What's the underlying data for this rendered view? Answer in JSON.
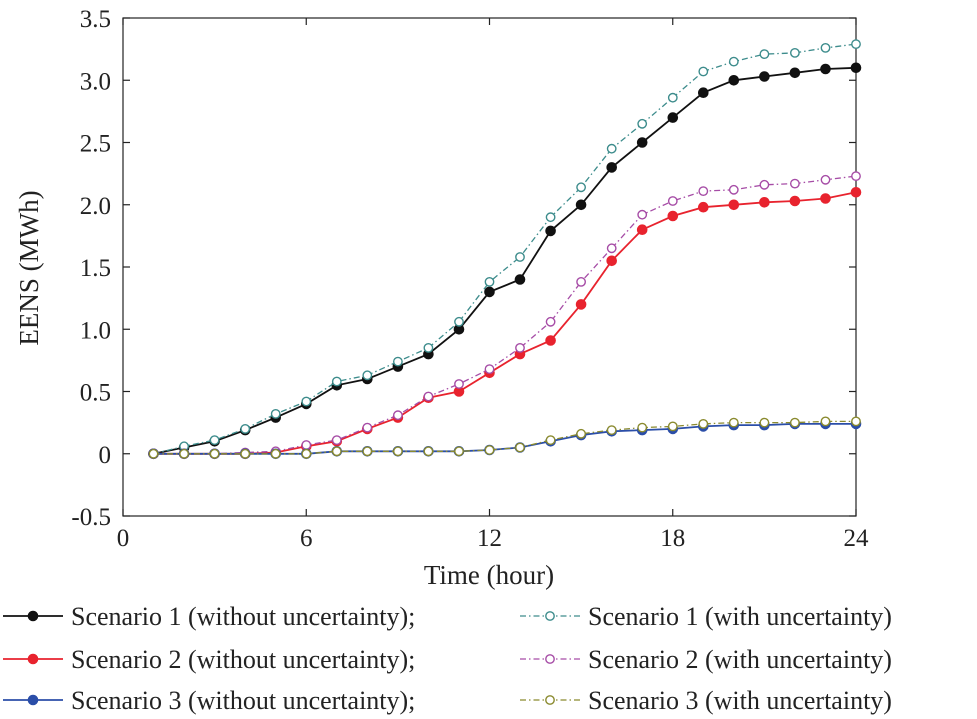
{
  "chart_data": {
    "type": "line",
    "title": "",
    "xlabel": "Time (hour)",
    "ylabel": "EENS (MWh)",
    "xlim": [
      0,
      24
    ],
    "ylim": [
      -0.5,
      3.5
    ],
    "xticks": [
      0,
      6,
      12,
      18,
      24
    ],
    "xtick_labels": [
      "0",
      "6",
      "12",
      "18",
      "24"
    ],
    "yticks": [
      -0.5,
      0,
      0.5,
      1.0,
      1.5,
      2.0,
      2.5,
      3.0,
      3.5
    ],
    "ytick_labels": [
      "-0.5",
      "0",
      "0.5",
      "1.0",
      "1.5",
      "2.0",
      "2.5",
      "3.0",
      "3.5"
    ],
    "grid": false,
    "legend_position": "bottom",
    "x": [
      1,
      2,
      3,
      4,
      5,
      6,
      7,
      8,
      9,
      10,
      11,
      12,
      13,
      14,
      15,
      16,
      17,
      18,
      19,
      20,
      21,
      22,
      23,
      24
    ],
    "series": [
      {
        "name": "Scenario 1 (without uncertainty);",
        "color": "#111111",
        "dash": "solid",
        "marker": "filled",
        "values": [
          0,
          0.05,
          0.1,
          0.19,
          0.29,
          0.4,
          0.55,
          0.6,
          0.7,
          0.8,
          1.0,
          1.3,
          1.4,
          1.79,
          2.0,
          2.3,
          2.5,
          2.7,
          2.9,
          3.0,
          3.03,
          3.06,
          3.09,
          3.1
        ]
      },
      {
        "name": "Scenario 1 (with uncertainty)",
        "color": "#3d8c8c",
        "dash": "dashdot",
        "marker": "open",
        "values": [
          0,
          0.06,
          0.11,
          0.2,
          0.32,
          0.42,
          0.58,
          0.63,
          0.74,
          0.85,
          1.06,
          1.38,
          1.58,
          1.9,
          2.14,
          2.45,
          2.65,
          2.86,
          3.07,
          3.15,
          3.21,
          3.22,
          3.26,
          3.29
        ]
      },
      {
        "name": "Scenario 2 (without uncertainty);",
        "color": "#e8232e",
        "dash": "solid",
        "marker": "filled",
        "values": [
          0,
          0,
          0,
          0,
          0.01,
          0.06,
          0.1,
          0.2,
          0.29,
          0.45,
          0.5,
          0.65,
          0.8,
          0.91,
          1.2,
          1.55,
          1.8,
          1.91,
          1.98,
          2.0,
          2.02,
          2.03,
          2.05,
          2.1
        ]
      },
      {
        "name": "Scenario 2 (with uncertainty)",
        "color": "#a64ca6",
        "dash": "dashdot",
        "marker": "open",
        "values": [
          0,
          0,
          0,
          0.01,
          0.02,
          0.07,
          0.11,
          0.21,
          0.31,
          0.46,
          0.56,
          0.68,
          0.85,
          1.06,
          1.38,
          1.65,
          1.92,
          2.03,
          2.11,
          2.12,
          2.16,
          2.17,
          2.2,
          2.23
        ]
      },
      {
        "name": "Scenario 3 (without uncertainty);",
        "color": "#2b4ea8",
        "dash": "solid",
        "marker": "filled",
        "values": [
          0,
          0,
          0,
          0,
          0,
          0,
          0.02,
          0.02,
          0.02,
          0.02,
          0.02,
          0.03,
          0.05,
          0.1,
          0.15,
          0.18,
          0.19,
          0.2,
          0.22,
          0.23,
          0.23,
          0.24,
          0.24,
          0.24
        ]
      },
      {
        "name": "Scenario 3 (with uncertainty)",
        "color": "#8a8a2e",
        "dash": "dashdot",
        "marker": "open",
        "values": [
          0,
          0,
          0,
          0,
          0,
          0,
          0.02,
          0.02,
          0.02,
          0.02,
          0.02,
          0.03,
          0.05,
          0.11,
          0.16,
          0.19,
          0.21,
          0.22,
          0.24,
          0.25,
          0.25,
          0.25,
          0.26,
          0.26
        ]
      }
    ]
  }
}
